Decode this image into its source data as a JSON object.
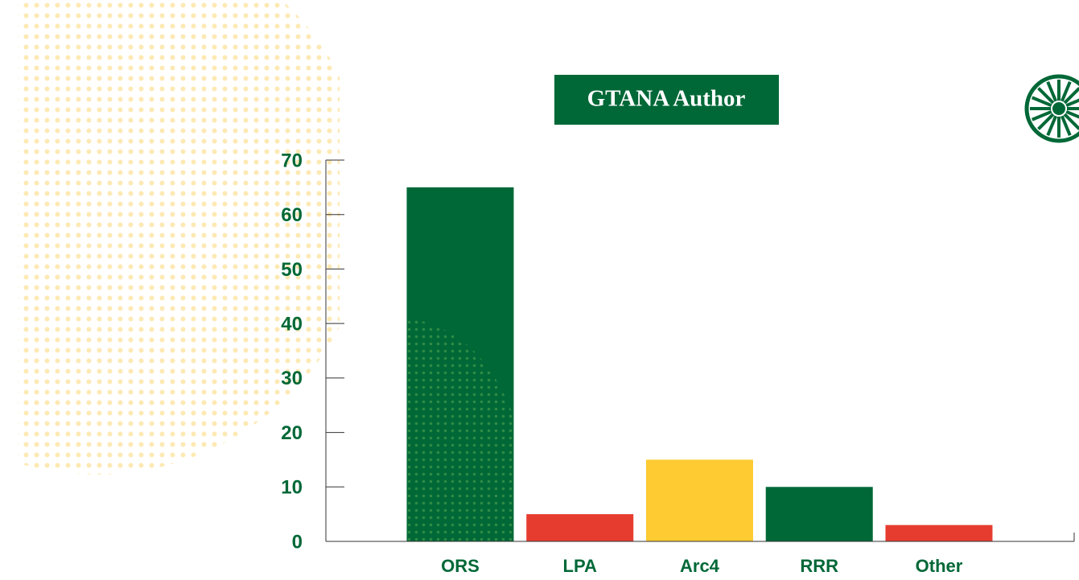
{
  "chart_data": {
    "type": "bar",
    "title": "GTANA Author",
    "categories": [
      "ORS",
      "LPA",
      "Arc4",
      "RRR",
      "Other"
    ],
    "values": [
      65,
      5,
      15,
      10,
      3
    ],
    "colors": [
      "#006837",
      "#e63c2f",
      "#fecb32",
      "#006837",
      "#e63c2f"
    ],
    "ylim": [
      0,
      70
    ],
    "yticks": [
      0,
      10,
      20,
      30,
      40,
      50,
      60,
      70
    ],
    "grid": false
  }
}
